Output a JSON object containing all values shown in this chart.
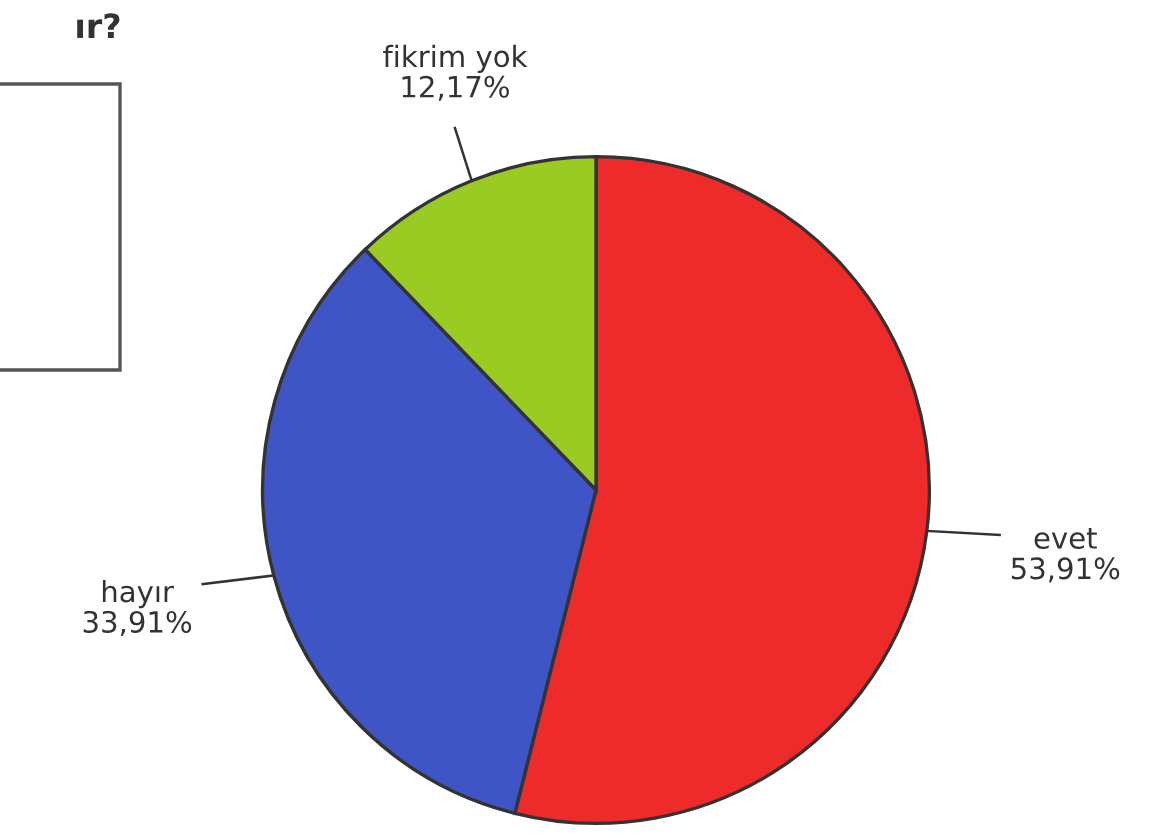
{
  "chart_data": {
    "type": "pie",
    "title": "ır?",
    "categories": [
      "evet",
      "hayır",
      "fikrim yok"
    ],
    "values": [
      53.91,
      33.91,
      12.17
    ],
    "value_labels": [
      "53,91%",
      "33,91%",
      "12,17%"
    ],
    "colors": [
      "#ee2b2b",
      "#3f55c6",
      "#9acb22"
    ],
    "legend": false
  }
}
